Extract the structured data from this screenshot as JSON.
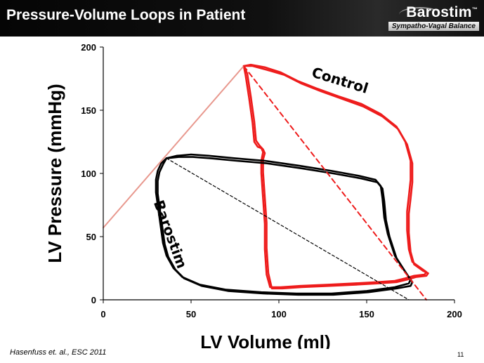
{
  "slide": {
    "title": "Pressure-Volume Loops in Patient",
    "brand_name": "Barostim",
    "brand_mark": "™",
    "brand_tagline": "Sympatho-Vagal Balance",
    "citation": "Hasenfuss et. al.,  ESC 2011",
    "slide_number": "11"
  },
  "chart_data": {
    "type": "line",
    "title": "",
    "xlabel": "LV Volume (ml)",
    "ylabel": "LV Pressure (mmHg)",
    "xlim": [
      0,
      200
    ],
    "ylim": [
      0,
      200
    ],
    "x_ticks": [
      "0",
      "50",
      "100",
      "150",
      "200"
    ],
    "y_ticks": [
      "0",
      "50",
      "100",
      "150",
      "200"
    ],
    "grid": false,
    "legend": "none",
    "annotations": [
      "Control",
      "Barostim"
    ],
    "colors": {
      "control": "#ee1c1c",
      "barostim": "#000000",
      "espvr": "#e8988e"
    },
    "series": [
      {
        "key": "control",
        "style": "solid",
        "x": [
          80,
          84,
          92,
          101,
          111,
          122,
          134,
          147,
          158,
          167,
          172,
          175,
          175,
          174,
          173,
          173,
          174,
          176,
          181,
          184,
          183,
          177,
          172,
          166,
          156,
          143,
          128,
          112,
          101,
          95,
          93,
          92,
          92,
          91,
          90,
          90,
          91,
          90,
          88,
          86,
          85,
          83,
          81,
          80
        ],
        "y": [
          185,
          186,
          184,
          180,
          173,
          167,
          161,
          155,
          147,
          137,
          125,
          110,
          95,
          82,
          70,
          55,
          40,
          30,
          25,
          22,
          20,
          19,
          17,
          15,
          14,
          13,
          12,
          11,
          10,
          10,
          20,
          40,
          60,
          80,
          100,
          110,
          117,
          120,
          121,
          125,
          140,
          160,
          178,
          185
        ]
      },
      {
        "key": "control-repeat",
        "style": "solid",
        "x": [
          80,
          85,
          93,
          103,
          113,
          124,
          136,
          148,
          159,
          168,
          173,
          176,
          176,
          175,
          174,
          174,
          175,
          177,
          182,
          185,
          184,
          178,
          173,
          167,
          157,
          144,
          129,
          113,
          102,
          96,
          94,
          93,
          93,
          92,
          91,
          91,
          92,
          91,
          89,
          87,
          86,
          84,
          82,
          80
        ],
        "y": [
          185,
          185,
          182,
          178,
          171,
          165,
          159,
          153,
          145,
          135,
          123,
          108,
          93,
          80,
          68,
          53,
          38,
          28,
          23,
          21,
          19,
          18,
          16,
          14,
          13,
          12,
          11,
          10,
          9,
          9,
          21,
          41,
          61,
          81,
          101,
          111,
          116,
          119,
          122,
          126,
          141,
          161,
          179,
          185
        ]
      },
      {
        "key": "barostim",
        "style": "solid",
        "x": [
          36,
          42,
          50,
          60,
          75,
          92,
          112,
          130,
          146,
          155,
          158,
          159,
          160,
          162,
          166,
          172,
          175,
          174,
          166,
          150,
          130,
          110,
          90,
          70,
          55,
          45,
          40,
          36,
          34,
          33,
          32,
          31,
          30,
          30,
          31,
          33,
          36
        ],
        "y": [
          112,
          114,
          115,
          114,
          112,
          110,
          106,
          102,
          98,
          95,
          90,
          80,
          65,
          52,
          35,
          22,
          16,
          13,
          10,
          7,
          5,
          5,
          6,
          8,
          12,
          18,
          25,
          35,
          45,
          55,
          65,
          75,
          85,
          95,
          102,
          108,
          112
        ]
      },
      {
        "key": "barostim-repeat",
        "style": "solid",
        "x": [
          36,
          43,
          51,
          61,
          76,
          93,
          113,
          131,
          147,
          156,
          159,
          160,
          161,
          163,
          167,
          173,
          176,
          175,
          167,
          151,
          131,
          111,
          91,
          71,
          56,
          46,
          41,
          37,
          35,
          34,
          33,
          32,
          31,
          31,
          32,
          34,
          36
        ],
        "y": [
          112,
          113,
          113,
          112,
          110,
          108,
          104,
          100,
          96,
          93,
          88,
          78,
          63,
          50,
          33,
          20,
          14,
          11,
          9,
          6,
          4,
          4,
          5,
          7,
          11,
          17,
          24,
          34,
          44,
          54,
          64,
          74,
          84,
          94,
          101,
          107,
          112
        ]
      },
      {
        "key": "espvr",
        "style": "solid",
        "x": [
          0,
          80
        ],
        "y": [
          57,
          185
        ]
      },
      {
        "key": "control-ea",
        "style": "dashed",
        "x": [
          80,
          184
        ],
        "y": [
          185,
          0
        ]
      },
      {
        "key": "barostim-ea",
        "style": "dashed",
        "x": [
          36,
          174
        ],
        "y": [
          112,
          0
        ]
      }
    ]
  }
}
